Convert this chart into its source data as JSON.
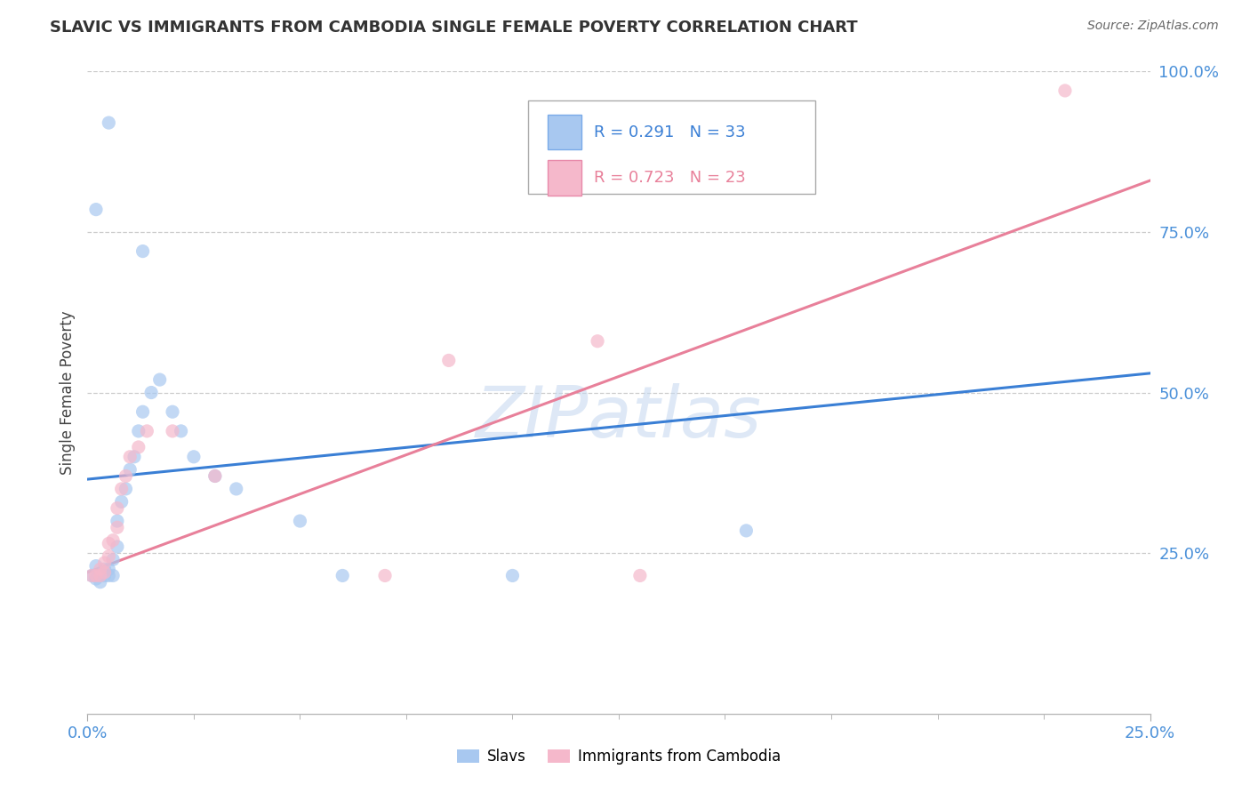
{
  "title": "SLAVIC VS IMMIGRANTS FROM CAMBODIA SINGLE FEMALE POVERTY CORRELATION CHART",
  "source": "Source: ZipAtlas.com",
  "ylabel": "Single Female Poverty",
  "xlim": [
    0.0,
    0.25
  ],
  "ylim": [
    0.0,
    1.0
  ],
  "xtick_vals": [
    0.0,
    0.25
  ],
  "xtick_labels": [
    "0.0%",
    "25.0%"
  ],
  "ytick_vals": [
    0.25,
    0.5,
    0.75,
    1.0
  ],
  "ytick_labels": [
    "25.0%",
    "50.0%",
    "75.0%",
    "100.0%"
  ],
  "slavs_color": "#a8c8f0",
  "cambodia_color": "#f5b8cb",
  "slavs_line_color": "#3a7fd5",
  "cambodia_line_color": "#e8809a",
  "slavs_R": "0.291",
  "slavs_N": "33",
  "cambodia_R": "0.723",
  "cambodia_N": "23",
  "slavs_line": [
    0.365,
    0.53
  ],
  "cambodia_line": [
    0.22,
    0.83
  ],
  "slavs_points": [
    [
      0.001,
      0.215
    ],
    [
      0.002,
      0.21
    ],
    [
      0.002,
      0.23
    ],
    [
      0.003,
      0.215
    ],
    [
      0.003,
      0.205
    ],
    [
      0.004,
      0.215
    ],
    [
      0.004,
      0.225
    ],
    [
      0.005,
      0.215
    ],
    [
      0.005,
      0.225
    ],
    [
      0.006,
      0.215
    ],
    [
      0.006,
      0.24
    ],
    [
      0.007,
      0.26
    ],
    [
      0.007,
      0.3
    ],
    [
      0.008,
      0.33
    ],
    [
      0.009,
      0.35
    ],
    [
      0.01,
      0.38
    ],
    [
      0.011,
      0.4
    ],
    [
      0.012,
      0.44
    ],
    [
      0.013,
      0.47
    ],
    [
      0.015,
      0.5
    ],
    [
      0.017,
      0.52
    ],
    [
      0.02,
      0.47
    ],
    [
      0.022,
      0.44
    ],
    [
      0.025,
      0.4
    ],
    [
      0.03,
      0.37
    ],
    [
      0.035,
      0.35
    ],
    [
      0.05,
      0.3
    ],
    [
      0.06,
      0.215
    ],
    [
      0.002,
      0.785
    ],
    [
      0.005,
      0.92
    ],
    [
      0.013,
      0.72
    ],
    [
      0.1,
      0.215
    ],
    [
      0.155,
      0.285
    ]
  ],
  "cambodia_points": [
    [
      0.001,
      0.215
    ],
    [
      0.002,
      0.215
    ],
    [
      0.003,
      0.215
    ],
    [
      0.003,
      0.225
    ],
    [
      0.004,
      0.22
    ],
    [
      0.004,
      0.235
    ],
    [
      0.005,
      0.245
    ],
    [
      0.005,
      0.265
    ],
    [
      0.006,
      0.27
    ],
    [
      0.007,
      0.29
    ],
    [
      0.007,
      0.32
    ],
    [
      0.008,
      0.35
    ],
    [
      0.009,
      0.37
    ],
    [
      0.01,
      0.4
    ],
    [
      0.012,
      0.415
    ],
    [
      0.014,
      0.44
    ],
    [
      0.02,
      0.44
    ],
    [
      0.03,
      0.37
    ],
    [
      0.07,
      0.215
    ],
    [
      0.085,
      0.55
    ],
    [
      0.12,
      0.58
    ],
    [
      0.13,
      0.215
    ],
    [
      0.23,
      0.97
    ]
  ],
  "watermark_text": "ZIPatlas",
  "watermark_color": "#c8daf0",
  "background_color": "#ffffff",
  "grid_color": "#cccccc",
  "tick_color": "#4a90d9",
  "title_fontsize": 13,
  "axis_label_fontsize": 12,
  "tick_fontsize": 13,
  "legend_fontsize": 13
}
